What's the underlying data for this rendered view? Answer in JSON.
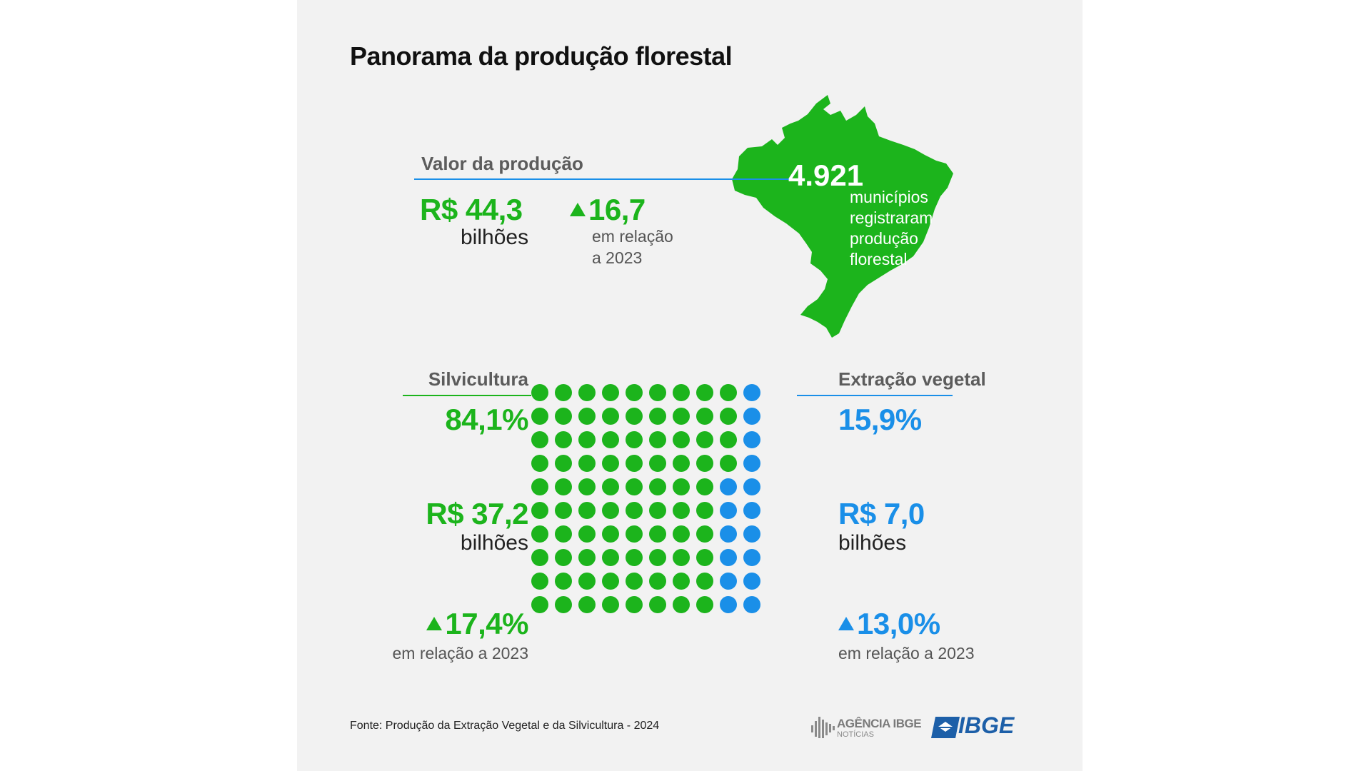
{
  "title": "Panorama da produção florestal",
  "valor": {
    "heading": "Valor da produção",
    "amount": "R$ 44,3",
    "unit": "bilhões",
    "change": "16,7",
    "change_note_1": "em relação",
    "change_note_2": "a 2023"
  },
  "municipios": {
    "count": "4.921",
    "line1": "municípios",
    "line2": "registraram",
    "line3": "produção",
    "line4": "florestal"
  },
  "silvicultura": {
    "heading": "Silvicultura",
    "share": "84,1%",
    "amount": "R$ 37,2",
    "unit": "bilhões",
    "change": "17,4%",
    "change_note": "em relação a 2023"
  },
  "extracao": {
    "heading": "Extração vegetal",
    "share": "15,9%",
    "amount": "R$ 7,0",
    "unit": "bilhões",
    "change": "13,0%",
    "change_note": "em relação a 2023"
  },
  "footer": {
    "source": "Fonte: Produção da Extração Vegetal e da Silvicultura - 2024",
    "agencia_line1": "AGÊNCIA IBGE",
    "agencia_line2": "NOTÍCIAS",
    "ibge": "IBGE"
  },
  "colors": {
    "green": "#1cb41c",
    "blue": "#1a8fe8"
  },
  "chart_data": {
    "type": "waffle",
    "total_dots": 100,
    "rows": 10,
    "cols": 10,
    "series": [
      {
        "name": "Silvicultura",
        "percent": 84.1,
        "value_billion_brl": 37.2,
        "color": "#1cb41c"
      },
      {
        "name": "Extração vegetal",
        "percent": 15.9,
        "value_billion_brl": 7.0,
        "color": "#1a8fe8"
      }
    ],
    "blue_per_row": [
      1,
      1,
      1,
      1,
      2,
      2,
      2,
      2,
      2,
      2
    ]
  }
}
